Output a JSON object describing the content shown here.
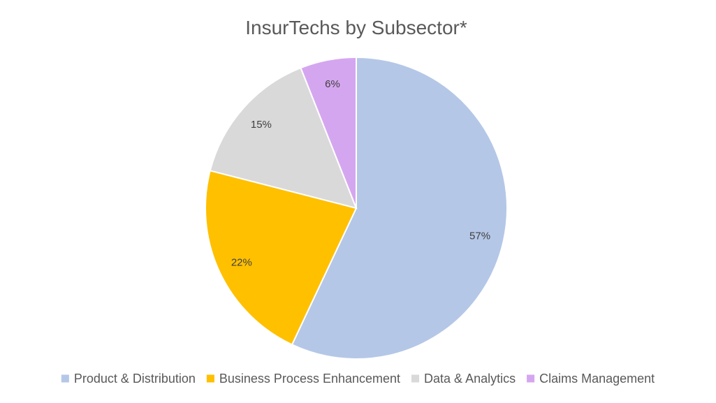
{
  "chart_data": {
    "type": "pie",
    "title": "InsurTechs by Subsector*",
    "categories": [
      "Product & Distribution",
      "Business Process Enhancement",
      "Data & Analytics",
      "Claims Management"
    ],
    "values": [
      57,
      22,
      15,
      6
    ],
    "data_labels": [
      "57%",
      "22%",
      "15%",
      "6%"
    ],
    "colors": [
      "#b4c7e7",
      "#ffc000",
      "#d9d9d9",
      "#d5a6f0"
    ],
    "legend_position": "bottom",
    "start_angle": "12 o'clock",
    "direction": "clockwise"
  }
}
